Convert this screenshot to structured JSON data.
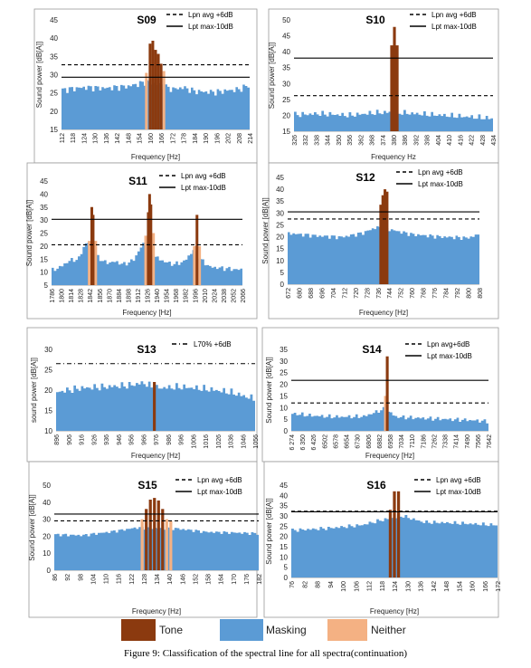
{
  "caption": "Figure 9: Classification of the spectral line for all spectra(continuation)",
  "legend": {
    "tone": "Tone",
    "masking": "Masking",
    "neither": "Neither"
  },
  "colors": {
    "tone": "#8B3A0F",
    "masking": "#5B9BD5",
    "neither": "#F4B183",
    "frame": "#999999",
    "text": "#222222"
  },
  "chart_data": [
    {
      "type": "bar",
      "title": "S09",
      "xlabel": "Frequency [Hz]",
      "ylabel": "Sound power [dB[A]]",
      "ylim": [
        15,
        45
      ],
      "yticks": [
        15,
        20,
        25,
        30,
        35,
        40,
        45
      ],
      "xticks": [
        "112",
        "118",
        "124",
        "130",
        "136",
        "142",
        "148",
        "154",
        "160",
        "166",
        "172",
        "178",
        "184",
        "190",
        "196",
        "202",
        "208",
        "214"
      ],
      "xrange": [
        112,
        214
      ],
      "lines": [
        {
          "name": "Lpn avg +6dB",
          "style": "dashed",
          "y": 32.7
        },
        {
          "name": "Lpt max-10dB",
          "style": "solid",
          "y": 29.3
        }
      ],
      "baseline": 26,
      "bg_freqs": [
        112,
        124,
        136,
        148,
        154,
        158,
        166,
        172,
        178,
        184,
        190,
        196,
        202,
        208,
        214
      ],
      "bg_values": [
        25.8,
        26.5,
        26.3,
        26.8,
        27.5,
        28.0,
        27.2,
        26.0,
        26.5,
        25.5,
        25.3,
        25.2,
        25.7,
        25.9,
        27.2
      ],
      "tone_bars": [
        {
          "f": 160,
          "v": 38.5
        },
        {
          "f": 161.5,
          "v": 39.3
        },
        {
          "f": 163,
          "v": 36.8
        },
        {
          "f": 164.5,
          "v": 35.7
        },
        {
          "f": 166,
          "v": 33.0
        }
      ],
      "neither_bars": [
        {
          "f": 158,
          "v": 30.5
        },
        {
          "f": 167.5,
          "v": 31.0
        }
      ]
    },
    {
      "type": "bar",
      "title": "S10",
      "xlabel": "Frequency Hz",
      "ylabel": "Sound power [dB[A]]",
      "ylim": [
        15,
        50
      ],
      "yticks": [
        15,
        20,
        25,
        30,
        35,
        40,
        45,
        50
      ],
      "xticks": [
        "326",
        "332",
        "338",
        "344",
        "350",
        "356",
        "362",
        "368",
        "374",
        "380",
        "386",
        "392",
        "398",
        "404",
        "410",
        "416",
        "422",
        "428",
        "434"
      ],
      "xrange": [
        326,
        434
      ],
      "lines": [
        {
          "name": "Lpn avg +6dB",
          "style": "dashed",
          "y": 26.2
        },
        {
          "name": "Lpt max-10dB",
          "style": "solid",
          "y": 38.0
        }
      ],
      "baseline": 20,
      "bg_freqs": [
        326,
        340,
        356,
        370,
        380,
        392,
        410,
        422,
        434
      ],
      "bg_values": [
        20.2,
        20.5,
        20.0,
        20.8,
        21.0,
        20.5,
        19.9,
        19.5,
        19.0
      ],
      "tone_bars": [
        {
          "f": 379,
          "v": 42.0
        },
        {
          "f": 380.5,
          "v": 47.8
        },
        {
          "f": 382,
          "v": 42.0
        }
      ],
      "neither_bars": []
    },
    {
      "type": "bar",
      "title": "S11",
      "xlabel": "Frequency [Hz]",
      "ylabel": "Sound power [dB[A]]",
      "ylim": [
        5,
        45
      ],
      "yticks": [
        5,
        10,
        15,
        20,
        25,
        30,
        35,
        40,
        45
      ],
      "xticks": [
        "1786",
        "1800",
        "1814",
        "1828",
        "1842",
        "1856",
        "1870",
        "1884",
        "1898",
        "1912",
        "1926",
        "1940",
        "1954",
        "1968",
        "1982",
        "1996",
        "2010",
        "2024",
        "2038",
        "2052",
        "2066"
      ],
      "xrange": [
        1786,
        2080
      ],
      "lines": [
        {
          "name": "Lpn avg +6dB",
          "style": "dashed",
          "y": 20.5
        },
        {
          "name": "Lpt max-10dB",
          "style": "solid",
          "y": 30.3
        }
      ],
      "baseline": 12,
      "bg_freqs": [
        1786,
        1800,
        1814,
        1828,
        1836,
        1845,
        1856,
        1870,
        1884,
        1898,
        1912,
        1925,
        1933,
        1945,
        1960,
        1975,
        1990,
        2005,
        2015,
        2030,
        2050,
        2070,
        2080
      ],
      "bg_values": [
        10.5,
        12.0,
        14.5,
        15.0,
        20.0,
        22.0,
        16.0,
        13.5,
        14.0,
        13.0,
        14.5,
        20.0,
        22.5,
        16.0,
        14.0,
        13.0,
        14.0,
        18.5,
        15.0,
        12.0,
        11.5,
        11.0,
        11.0
      ],
      "tone_bars": [
        {
          "f": 1848,
          "v": 35.0
        },
        {
          "f": 1850,
          "v": 32.0
        },
        {
          "f": 1935,
          "v": 33.0
        },
        {
          "f": 1937,
          "v": 40.0
        },
        {
          "f": 1939,
          "v": 36.0
        },
        {
          "f": 2010,
          "v": 32.0
        }
      ],
      "neither_bars": [
        {
          "f": 1844,
          "v": 22.0
        },
        {
          "f": 1854,
          "v": 22.0
        },
        {
          "f": 1931,
          "v": 24.0
        },
        {
          "f": 1943,
          "v": 25.0
        },
        {
          "f": 2006,
          "v": 20.0
        },
        {
          "f": 2014,
          "v": 20.0
        }
      ]
    },
    {
      "type": "bar",
      "title": "S12",
      "xlabel": "Frequency [Hz]",
      "ylabel": "Sound power [dB[A]]",
      "ylim": [
        0,
        45
      ],
      "yticks": [
        0,
        5,
        10,
        15,
        20,
        25,
        30,
        35,
        40,
        45
      ],
      "xticks": [
        "672",
        "680",
        "688",
        "696",
        "704",
        "712",
        "720",
        "728",
        "736",
        "744",
        "752",
        "760",
        "768",
        "776",
        "784",
        "792",
        "800",
        "808"
      ],
      "xrange": [
        672,
        808
      ],
      "lines": [
        {
          "name": "Lpn avg +6dB",
          "style": "dashed",
          "y": 27.5
        },
        {
          "name": "Lpt max-10dB",
          "style": "solid",
          "y": 30.5
        }
      ],
      "baseline": 21,
      "bg_freqs": [
        672,
        690,
        710,
        725,
        735,
        745,
        760,
        780,
        800,
        808
      ],
      "bg_values": [
        21.5,
        20.5,
        19.8,
        21.5,
        24.0,
        23.0,
        21.0,
        20.0,
        19.5,
        21.0
      ],
      "tone_bars": [
        {
          "f": 738,
          "v": 33.5
        },
        {
          "f": 739.5,
          "v": 37.5
        },
        {
          "f": 741,
          "v": 40.0
        },
        {
          "f": 742.5,
          "v": 39.0
        }
      ],
      "neither_bars": []
    },
    {
      "type": "bar",
      "title": "S13",
      "xlabel": "Frequency [Hz]",
      "ylabel": "sound power [dB[A]]",
      "ylim": [
        10,
        30
      ],
      "yticks": [
        10,
        15,
        20,
        25,
        30
      ],
      "xticks": [
        "896",
        "906",
        "916",
        "926",
        "936",
        "946",
        "956",
        "966",
        "976",
        "986",
        "996",
        "1006",
        "1016",
        "1026",
        "1036",
        "1046",
        "1056"
      ],
      "xrange": [
        896,
        1056
      ],
      "lines": [
        {
          "name": "L70% +6dB",
          "style": "dashdot",
          "y": 26.5
        }
      ],
      "baseline": 20,
      "bg_freqs": [
        896,
        916,
        936,
        956,
        966,
        976,
        996,
        1016,
        1036,
        1056
      ],
      "bg_values": [
        19.5,
        20.5,
        20.8,
        21.2,
        21.8,
        20.5,
        20.8,
        20.3,
        19.5,
        17.8
      ],
      "tone_bars": [
        {
          "f": 975,
          "v": 22.0
        }
      ],
      "neither_bars": []
    },
    {
      "type": "bar",
      "title": "S14",
      "xlabel": "Frequency [Hz]",
      "ylabel": "Sound power [dB[A]]",
      "ylim": [
        0,
        35
      ],
      "yticks": [
        0,
        5,
        10,
        15,
        20,
        25,
        30,
        35
      ],
      "xticks": [
        "6 274",
        "6 350",
        "6 426",
        "6502",
        "6578",
        "6654",
        "6730",
        "6806",
        "6882",
        "6958",
        "7034",
        "7110",
        "7186",
        "7262",
        "7338",
        "7414",
        "7490",
        "7566",
        "7642"
      ],
      "xrange": [
        6274,
        7700
      ],
      "lines": [
        {
          "name": "Lpn avg+6dB",
          "style": "dashed",
          "y": 12.0
        },
        {
          "name": "Lpt max-10dB",
          "style": "solid",
          "y": 21.7
        }
      ],
      "baseline": 6,
      "bg_freqs": [
        6274,
        6426,
        6600,
        6800,
        6950,
        7034,
        7200,
        7400,
        7600,
        7700
      ],
      "bg_values": [
        7.5,
        6.5,
        6.0,
        6.2,
        9.5,
        6.0,
        5.5,
        5.0,
        4.5,
        4.0
      ],
      "tone_bars": [
        {
          "f": 6968,
          "v": 32.0
        }
      ],
      "neither_bars": [
        {
          "f": 6955,
          "v": 15.0
        }
      ]
    },
    {
      "type": "bar",
      "title": "S15",
      "xlabel": "Frequency [Hz]",
      "ylabel": "Sound power [dB[A]]",
      "ylim": [
        0,
        50
      ],
      "yticks": [
        0,
        10,
        20,
        30,
        40,
        50
      ],
      "xticks": [
        "86",
        "92",
        "98",
        "104",
        "110",
        "116",
        "122",
        "128",
        "134",
        "140",
        "146",
        "152",
        "158",
        "164",
        "170",
        "176",
        "182"
      ],
      "xrange": [
        86,
        186
      ],
      "lines": [
        {
          "name": "Lpn avg +6dB",
          "style": "dashed",
          "y": 29.0
        },
        {
          "name": "Lpt max-10dB",
          "style": "solid",
          "y": 33.0
        }
      ],
      "baseline": 22,
      "bg_freqs": [
        86,
        100,
        116,
        126,
        146,
        160,
        176,
        186
      ],
      "bg_values": [
        21.0,
        20.5,
        23.0,
        25.0,
        24.5,
        22.5,
        22.0,
        21.5
      ],
      "tone_bars": [
        {
          "f": 131,
          "v": 36.0
        },
        {
          "f": 133,
          "v": 41.5
        },
        {
          "f": 135,
          "v": 42.5
        },
        {
          "f": 137,
          "v": 41.0
        },
        {
          "f": 139,
          "v": 36.0
        }
      ],
      "neither_bars": [
        {
          "f": 129,
          "v": 30.0
        },
        {
          "f": 141,
          "v": 30.0
        },
        {
          "f": 143,
          "v": 29.0
        }
      ]
    },
    {
      "type": "bar",
      "title": "S16",
      "xlabel": "Frequency [Hz]",
      "ylabel": "Sound power [dB[A]]",
      "ylim": [
        0,
        45
      ],
      "yticks": [
        0,
        5,
        10,
        15,
        20,
        25,
        30,
        35,
        40,
        45
      ],
      "xticks": [
        "76",
        "82",
        "88",
        "94",
        "100",
        "106",
        "112",
        "118",
        "124",
        "130",
        "136",
        "142",
        "148",
        "154",
        "160",
        "166",
        "172"
      ],
      "xrange": [
        76,
        176
      ],
      "lines": [
        {
          "name": "Lpn avg +6dB",
          "style": "dashed",
          "y": 32.3
        },
        {
          "name": "Lpt max-10dB",
          "style": "solid",
          "y": 32.0
        }
      ],
      "baseline": 25,
      "bg_freqs": [
        76,
        94,
        110,
        120,
        130,
        140,
        156,
        176
      ],
      "bg_values": [
        23.0,
        24.0,
        25.5,
        28.0,
        30.0,
        27.0,
        26.5,
        25.5
      ],
      "tone_bars": [
        {
          "f": 124,
          "v": 33.0
        },
        {
          "f": 126,
          "v": 42.0
        },
        {
          "f": 128,
          "v": 42.0
        }
      ],
      "neither_bars": []
    }
  ]
}
